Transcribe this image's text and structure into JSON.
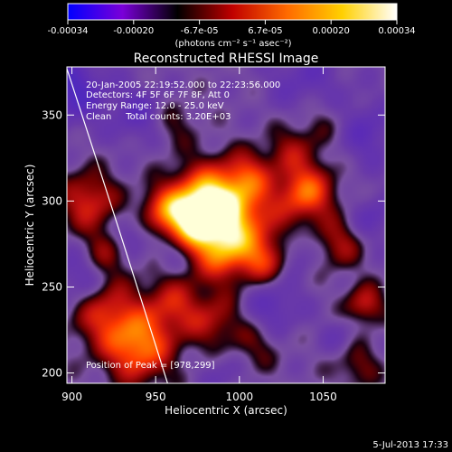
{
  "colorbar": {
    "tick_labels": [
      "-0.00034",
      "-0.00020",
      "-6.7e-05",
      "6.7e-05",
      "0.00020",
      "0.00034"
    ],
    "units_label": "(photons cm⁻² s⁻¹ asec⁻²)",
    "range": [
      -0.00034,
      0.00034
    ],
    "colors": [
      "#0000ff",
      "#7a00d8",
      "#000000",
      "#c00000",
      "#ff6a00",
      "#ffd000",
      "#ffffff"
    ]
  },
  "image": {
    "title": "Reconstructed RHESSI Image",
    "info_lines": [
      "20-Jan-2005 22:19:52.000 to 22:23:56.000",
      "Detectors: 4F 5F 6F 7F 8F, Att 0",
      "Energy Range: 12.0 - 25.0 keV",
      "Clean     Total counts: 3.20E+03"
    ],
    "peak_label": "Position of Peak = [978,299]",
    "x_axis_label": "Heliocentric X (arcsec)",
    "y_axis_label": "Heliocentric Y (arcsec)",
    "x_ticks": [
      "900",
      "950",
      "1000",
      "1050"
    ],
    "y_ticks": [
      "200",
      "250",
      "300",
      "350"
    ],
    "x_range": [
      897,
      1087
    ],
    "y_range": [
      194,
      378
    ],
    "peak": [
      978,
      299
    ],
    "blobs": [
      {
        "x": 980,
        "y": 300,
        "amp": 1.0,
        "s": 14
      },
      {
        "x": 1000,
        "y": 290,
        "amp": 0.7,
        "s": 16
      },
      {
        "x": 970,
        "y": 285,
        "amp": 0.6,
        "s": 12
      },
      {
        "x": 955,
        "y": 295,
        "amp": 0.5,
        "s": 10
      },
      {
        "x": 1040,
        "y": 305,
        "amp": 0.75,
        "s": 12
      },
      {
        "x": 1005,
        "y": 315,
        "amp": 0.45,
        "s": 10
      },
      {
        "x": 990,
        "y": 270,
        "amp": 0.6,
        "s": 12
      },
      {
        "x": 1015,
        "y": 265,
        "amp": 0.5,
        "s": 10
      },
      {
        "x": 940,
        "y": 215,
        "amp": 0.8,
        "s": 14
      },
      {
        "x": 920,
        "y": 235,
        "amp": 0.55,
        "s": 14
      },
      {
        "x": 960,
        "y": 240,
        "amp": 0.45,
        "s": 12
      },
      {
        "x": 985,
        "y": 230,
        "amp": 0.4,
        "s": 12
      },
      {
        "x": 910,
        "y": 300,
        "amp": 0.55,
        "s": 12
      },
      {
        "x": 920,
        "y": 270,
        "amp": 0.35,
        "s": 10
      },
      {
        "x": 1060,
        "y": 275,
        "amp": 0.4,
        "s": 10
      },
      {
        "x": 1075,
        "y": 240,
        "amp": 0.5,
        "s": 8
      },
      {
        "x": 1070,
        "y": 205,
        "amp": 0.3,
        "s": 10
      },
      {
        "x": 1050,
        "y": 345,
        "amp": 0.25,
        "s": 12
      },
      {
        "x": 1030,
        "y": 330,
        "amp": 0.3,
        "s": 10
      },
      {
        "x": 960,
        "y": 345,
        "amp": 0.25,
        "s": 10
      },
      {
        "x": 1010,
        "y": 215,
        "amp": 0.25,
        "s": 10
      },
      {
        "x": 900,
        "y": 365,
        "amp": -0.55,
        "s": 14
      },
      {
        "x": 940,
        "y": 350,
        "amp": -0.35,
        "s": 12
      },
      {
        "x": 1040,
        "y": 370,
        "amp": -0.3,
        "s": 16
      },
      {
        "x": 1075,
        "y": 340,
        "amp": -0.35,
        "s": 14
      },
      {
        "x": 1080,
        "y": 290,
        "amp": -0.3,
        "s": 10
      },
      {
        "x": 905,
        "y": 255,
        "amp": -0.35,
        "s": 12
      },
      {
        "x": 935,
        "y": 280,
        "amp": -0.3,
        "s": 8
      },
      {
        "x": 960,
        "y": 270,
        "amp": -0.3,
        "s": 8
      },
      {
        "x": 1035,
        "y": 270,
        "amp": -0.25,
        "s": 8
      },
      {
        "x": 1020,
        "y": 240,
        "amp": -0.35,
        "s": 12
      },
      {
        "x": 990,
        "y": 200,
        "amp": -0.2,
        "s": 10
      },
      {
        "x": 1060,
        "y": 220,
        "amp": -0.2,
        "s": 8
      }
    ]
  },
  "footer": {
    "timestamp": "5-Jul-2013 17:33"
  }
}
